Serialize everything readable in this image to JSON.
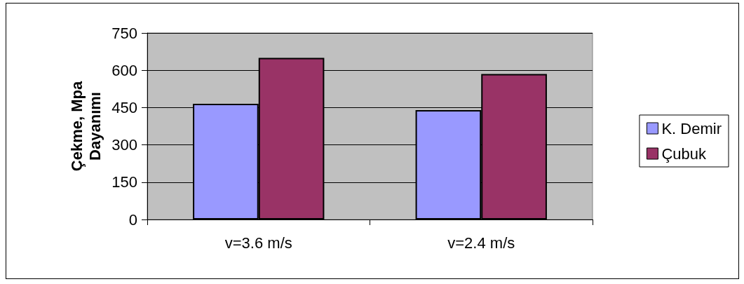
{
  "chart_data": {
    "type": "bar",
    "ylabel": "Çekme, Mpa\nDayanımı",
    "categories": [
      "v=3.6 m/s",
      "v=2.4 m/s"
    ],
    "series": [
      {
        "name": "K. Demir",
        "color": "#9999ff",
        "values": [
          465,
          440
        ]
      },
      {
        "name": "Çubuk",
        "color": "#993366",
        "values": [
          650,
          585
        ]
      }
    ],
    "ylim": [
      0,
      750
    ],
    "yticks": [
      0,
      150,
      300,
      450,
      600,
      750
    ],
    "grid": "y",
    "legend": "right"
  }
}
